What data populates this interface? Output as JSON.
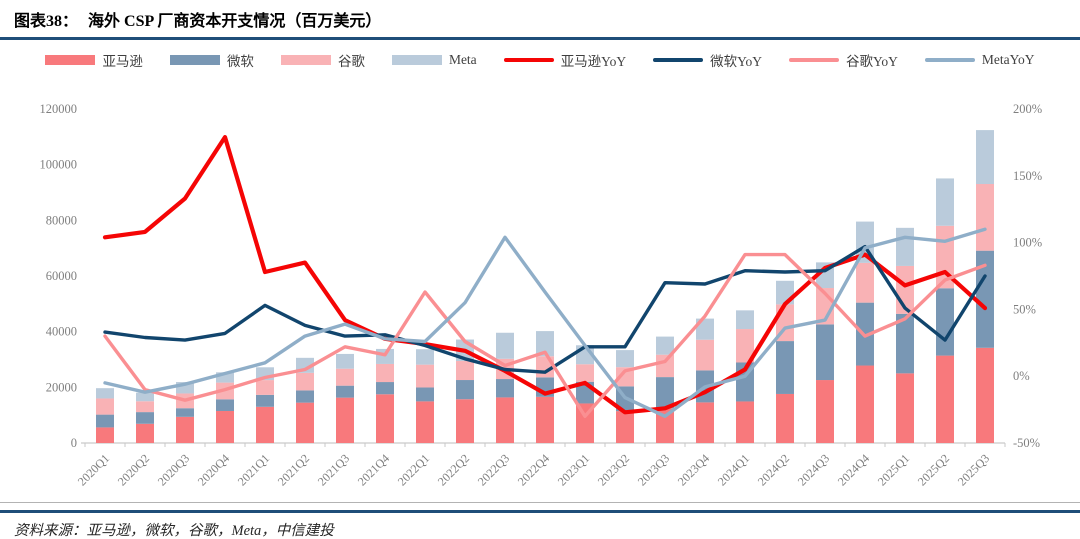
{
  "header": {
    "figure_label": "图表38：",
    "title": "海外 CSP 厂商资本开支情况（百万美元）"
  },
  "footer": {
    "source_note": "资料来源：亚马逊，微软，谷歌，Meta，中信建投"
  },
  "colors": {
    "rule_navy": "#1F4E79",
    "axis_text": "#7F7F7F",
    "axis_line": "#C9C9C9"
  },
  "chart_data": {
    "type": "bar",
    "subtype": "stacked bars (left axis, 百万美元) + YoY lines (right axis, %)",
    "title": "海外 CSP 厂商资本开支情况（百万美元）",
    "categories": [
      "2020Q1",
      "2020Q2",
      "2020Q3",
      "2020Q4",
      "2021Q1",
      "2021Q2",
      "2021Q3",
      "2021Q4",
      "2022Q1",
      "2022Q2",
      "2022Q3",
      "2022Q4",
      "2023Q1",
      "2023Q2",
      "2023Q3",
      "2023Q4",
      "2024Q1",
      "2024Q2",
      "2024Q3",
      "2024Q4",
      "2025Q1",
      "2025Q2",
      "2025Q3"
    ],
    "bar_series": [
      {
        "name": "亚马逊",
        "color": "#F8797C",
        "values": [
          5600,
          6900,
          9400,
          11500,
          13000,
          14500,
          16300,
          17500,
          14951,
          15724,
          16378,
          16592,
          14207,
          11455,
          12479,
          14588,
          14925,
          17620,
          22620,
          27834,
          25019,
          31400,
          34200
        ]
      },
      {
        "name": "微软",
        "color": "#7997B4",
        "values": [
          4600,
          4200,
          3100,
          4200,
          4300,
          4400,
          4300,
          4400,
          5000,
          6900,
          6600,
          7000,
          7800,
          8900,
          11200,
          11500,
          14000,
          19000,
          20000,
          22600,
          21400,
          24200,
          34900
        ]
      },
      {
        "name": "谷歌",
        "color": "#F9B2B5",
        "values": [
          5800,
          3900,
          5300,
          6000,
          5300,
          6300,
          6100,
          6500,
          8200,
          6828,
          7276,
          7575,
          6289,
          6888,
          8055,
          11019,
          12012,
          13186,
          13061,
          14276,
          17197,
          22446,
          23950
        ]
      },
      {
        "name": "Meta",
        "color": "#BACBDB",
        "values": [
          3700,
          3100,
          4100,
          3700,
          4600,
          5400,
          5300,
          5400,
          5549,
          7726,
          9355,
          9040,
          6823,
          6134,
          6496,
          7592,
          6724,
          8473,
          9210,
          14840,
          13690,
          17010,
          19370
        ]
      }
    ],
    "line_series": [
      {
        "name": "亚马逊YoY",
        "color": "#F50505",
        "values": [
          104,
          108,
          133,
          179,
          78,
          85,
          42,
          28,
          24,
          19,
          4,
          -13,
          -5,
          -27,
          -24,
          -12,
          5,
          54,
          81,
          91,
          68,
          78,
          51
        ]
      },
      {
        "name": "微软YoY",
        "color": "#11456D",
        "values": [
          33,
          29,
          27,
          32,
          53,
          38,
          30,
          31,
          23,
          13,
          5,
          3,
          22,
          22,
          70,
          69,
          79,
          78,
          79,
          97,
          51,
          27,
          75
        ]
      },
      {
        "name": "谷歌YoY",
        "color": "#FA8F92",
        "values": [
          30,
          -10,
          -18,
          -10,
          -1,
          5,
          22,
          16,
          63,
          26,
          8,
          18,
          -30,
          4,
          11,
          45,
          91,
          91,
          62,
          30,
          43,
          72,
          83
        ]
      },
      {
        "name": "MetaYoY",
        "color": "#8FAEC8",
        "values": [
          -5,
          -12,
          -6,
          2,
          10,
          30,
          39,
          28,
          26,
          55,
          104,
          63,
          23,
          -16,
          -30,
          -8,
          0,
          36,
          42,
          96,
          104,
          101,
          110
        ]
      }
    ],
    "stacked": true,
    "left_axis": {
      "min": 0,
      "max": 120000,
      "step": 20000
    },
    "right_axis": {
      "min": -50,
      "max": 200,
      "step": 50,
      "format": "percent"
    },
    "legend_position": "top",
    "gridlines": false
  }
}
